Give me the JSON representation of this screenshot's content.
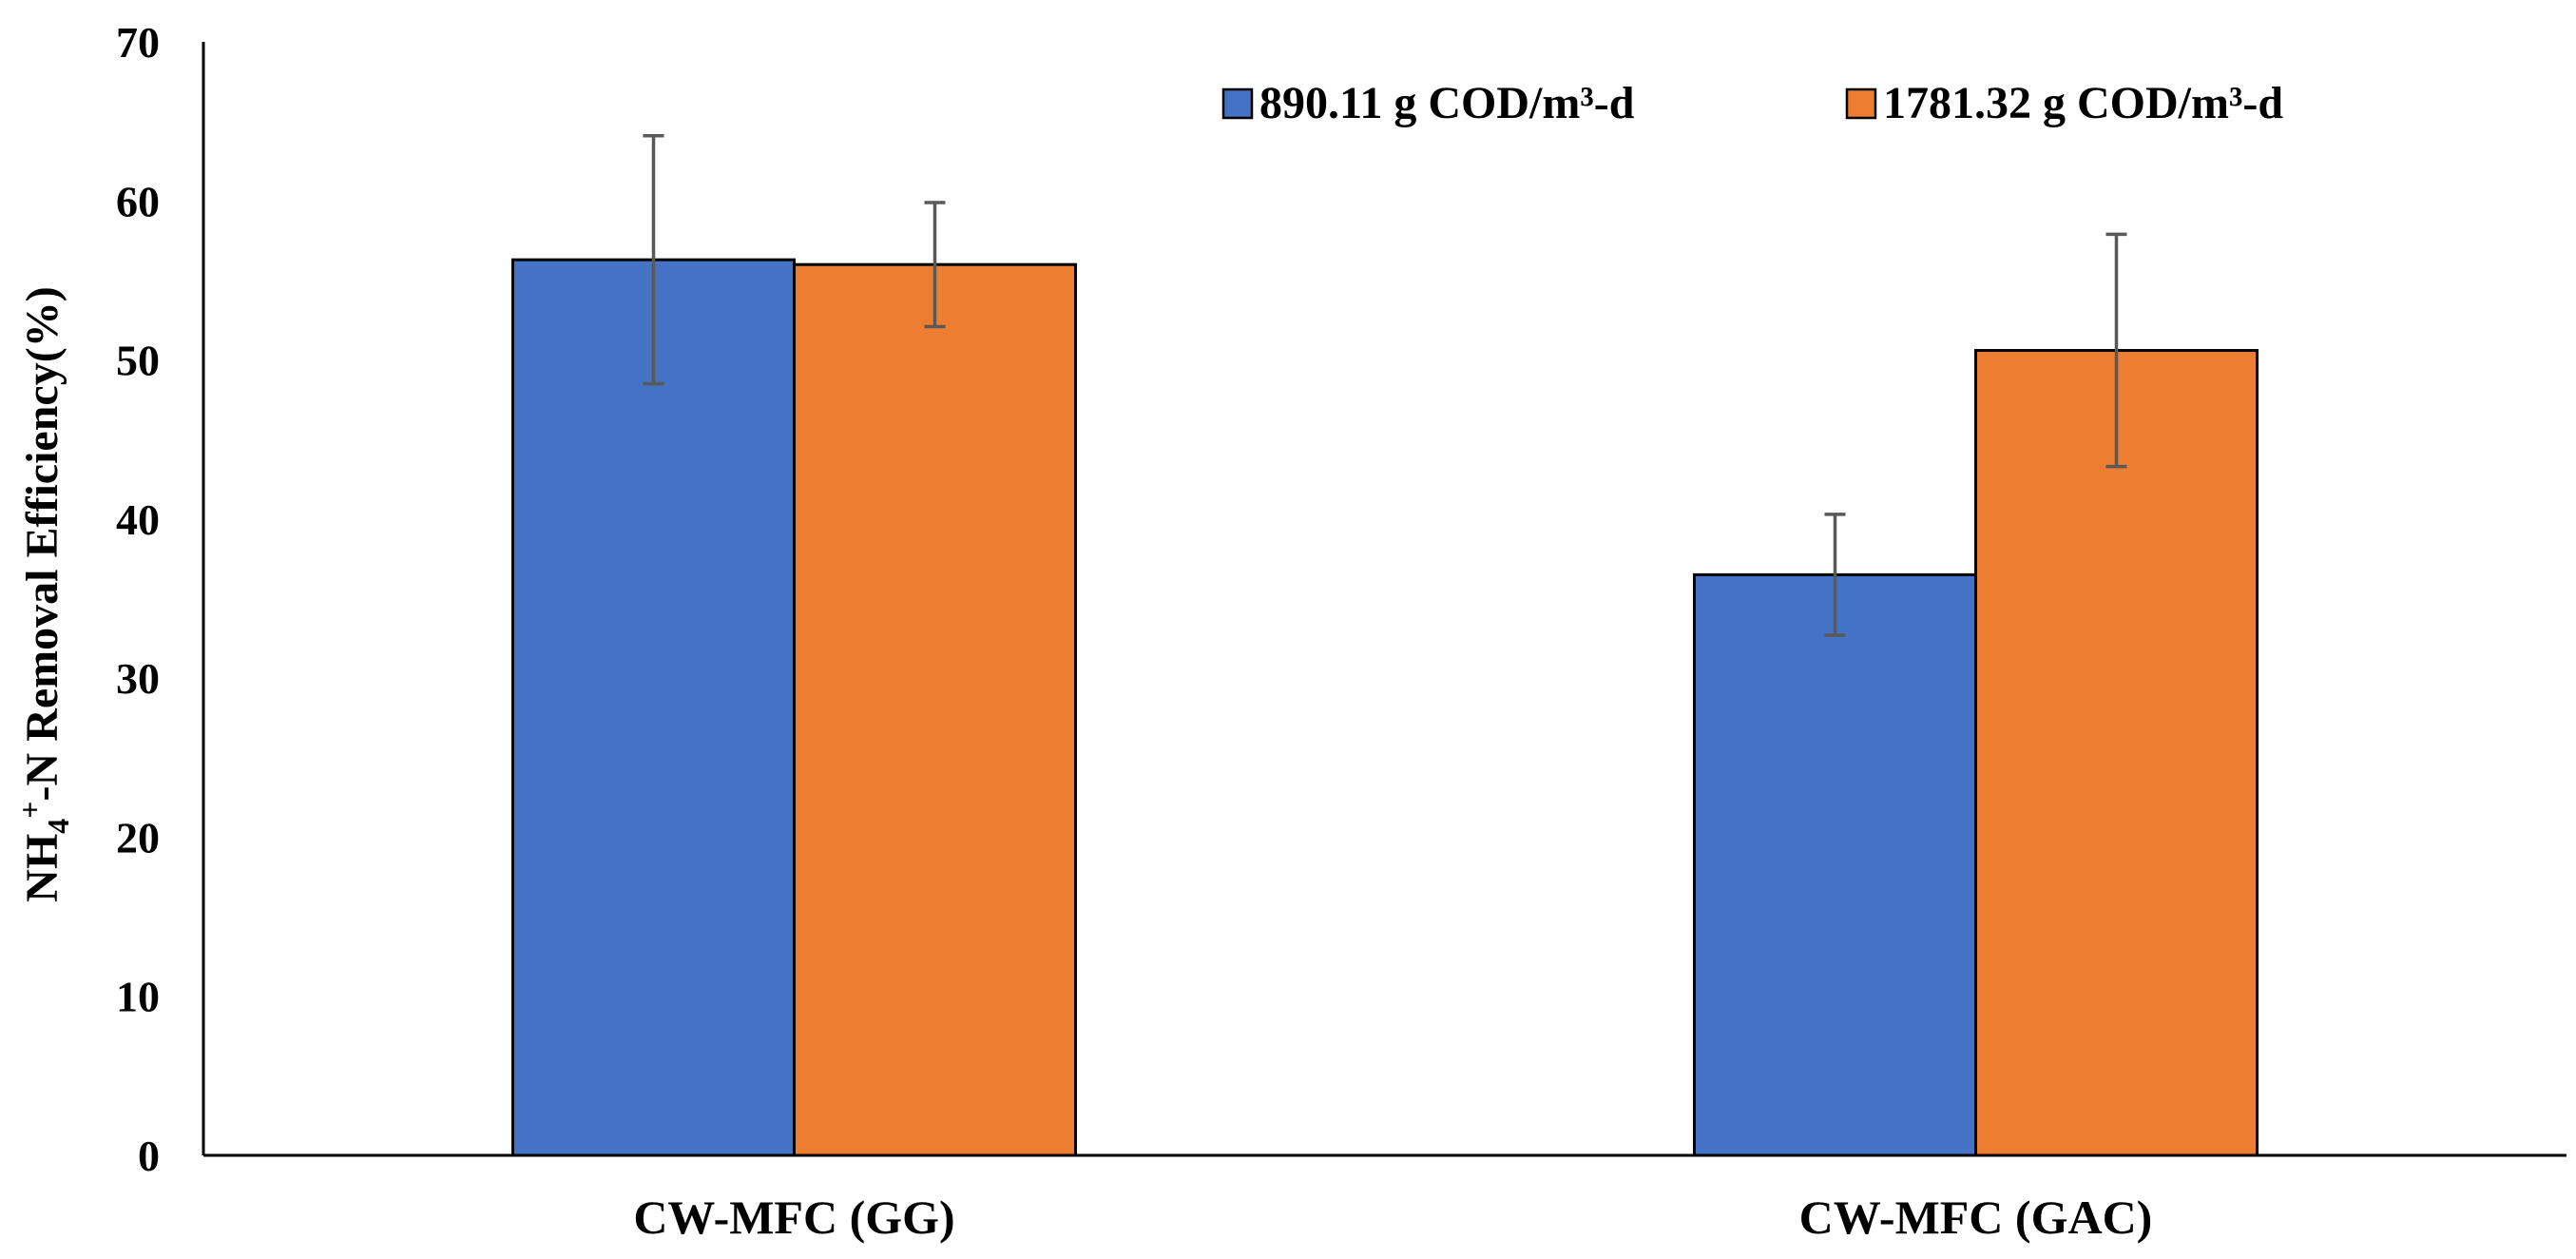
{
  "chart_data": {
    "type": "bar",
    "title": "",
    "xlabel": "",
    "ylabel": {
      "prefix": "NH",
      "subscript": "4",
      "superscript": "+",
      "suffix": "-N Removal Efficiency(%)"
    },
    "ylim": [
      0,
      70
    ],
    "yticks": [
      0,
      10,
      20,
      30,
      40,
      50,
      60,
      70
    ],
    "grid": false,
    "legend_position": "top-right",
    "categories": [
      "CW-MFC (GG)",
      "CW-MFC (GAC)"
    ],
    "series": [
      {
        "name": "890.11 g COD/m³-d",
        "color": "#4472C4",
        "values": [
          56.3,
          36.5
        ],
        "errors": [
          7.8,
          3.8
        ]
      },
      {
        "name": "1781.32 g COD/m³-d",
        "color": "#ED7D31",
        "values": [
          56.0,
          50.6
        ],
        "errors": [
          3.9,
          7.3
        ]
      }
    ]
  }
}
